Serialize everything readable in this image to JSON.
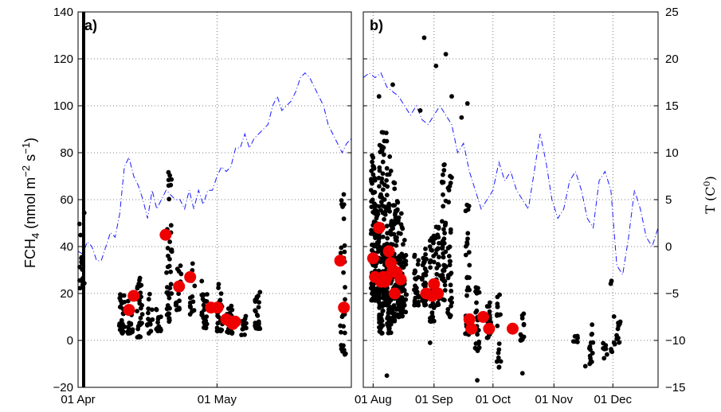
{
  "chart_data": [
    {
      "panel": "a)",
      "type": "scatter",
      "xlabel": "",
      "ylabel": "FCH4 (nmol m-2 s-1)",
      "xticks": [
        "01 Apr",
        "01 May"
      ],
      "xtick_days": [
        0,
        30
      ],
      "xlim_days": [
        0,
        59
      ],
      "ylim": [
        -20,
        140
      ],
      "yticks": [
        -20,
        0,
        20,
        40,
        60,
        80,
        100,
        120,
        140
      ],
      "grid": true,
      "vertical_marker_day": 1.2,
      "scatter_clusters": [
        {
          "day": 0.8,
          "n": 16,
          "ymin": 22,
          "ymax": 56
        },
        {
          "day": 9.5,
          "n": 30,
          "ymin": 3,
          "ymax": 20
        },
        {
          "day": 11.3,
          "n": 20,
          "ymin": 3,
          "ymax": 17
        },
        {
          "day": 13.3,
          "n": 28,
          "ymin": 1,
          "ymax": 27
        },
        {
          "day": 15.5,
          "n": 14,
          "ymin": 3,
          "ymax": 20
        },
        {
          "day": 17.4,
          "n": 16,
          "ymin": 4,
          "ymax": 19
        },
        {
          "day": 19.7,
          "n": 40,
          "ymin": 8,
          "ymax": 74
        },
        {
          "day": 21.7,
          "n": 18,
          "ymin": 13,
          "ymax": 32
        },
        {
          "day": 24.7,
          "n": 16,
          "ymin": 10,
          "ymax": 35
        },
        {
          "day": 27.3,
          "n": 26,
          "ymin": 5,
          "ymax": 26
        },
        {
          "day": 30.6,
          "n": 22,
          "ymin": 4,
          "ymax": 24
        },
        {
          "day": 32.7,
          "n": 30,
          "ymin": 3,
          "ymax": 15
        },
        {
          "day": 35.8,
          "n": 12,
          "ymin": 2,
          "ymax": 11
        },
        {
          "day": 38.7,
          "n": 26,
          "ymin": 5,
          "ymax": 21
        },
        {
          "day": 57.2,
          "n": 30,
          "ymin": -7,
          "ymax": 66
        }
      ],
      "red_means": [
        {
          "day": 11.0,
          "y": 13
        },
        {
          "day": 12.0,
          "y": 19
        },
        {
          "day": 18.9,
          "y": 45
        },
        {
          "day": 21.8,
          "y": 23
        },
        {
          "day": 24.2,
          "y": 27
        },
        {
          "day": 28.7,
          "y": 14
        },
        {
          "day": 30.1,
          "y": 14
        },
        {
          "day": 32.0,
          "y": 9
        },
        {
          "day": 32.9,
          "y": 8
        },
        {
          "day": 33.4,
          "y": 7
        },
        {
          "day": 33.9,
          "y": 8
        },
        {
          "day": 56.6,
          "y": 34
        },
        {
          "day": 57.4,
          "y": 14
        }
      ],
      "temperature_series": {
        "axis": "right",
        "ylim": [
          -15,
          25
        ],
        "days": [
          0,
          1,
          2,
          3,
          4,
          5,
          6,
          7,
          8,
          9,
          10,
          11,
          12,
          13,
          14,
          15,
          16,
          17,
          18,
          19,
          20,
          21,
          22,
          23,
          24,
          25,
          26,
          27,
          28,
          29,
          30,
          31,
          32,
          33,
          34,
          35,
          36,
          37,
          38,
          39,
          40,
          41,
          42,
          43,
          44,
          45,
          46,
          47,
          48,
          49,
          50,
          51,
          52,
          53,
          54,
          55,
          56,
          57,
          58,
          59
        ],
        "values": [
          -0.5,
          -0.8,
          0.5,
          0,
          -1.5,
          -1.5,
          0,
          1.5,
          1,
          3.5,
          8.5,
          9.5,
          7.5,
          6.5,
          5,
          3,
          6,
          4,
          5,
          6,
          5.5,
          5,
          5,
          4,
          6,
          4,
          6,
          4.5,
          6,
          6,
          7.5,
          8.5,
          8,
          8.5,
          10.5,
          10.5,
          12,
          10.5,
          11.5,
          12,
          12.5,
          13,
          15,
          16,
          14.5,
          15,
          15.5,
          16.5,
          18,
          18.5,
          18,
          17,
          16,
          15,
          13,
          12,
          11,
          10,
          11,
          11.5
        ]
      }
    },
    {
      "panel": "b)",
      "type": "scatter",
      "xlabel": "",
      "ylabel": "T (C0)",
      "xticks": [
        "01 Aug",
        "01 Sep",
        "01 Oct",
        "01 Nov",
        "01 Dec"
      ],
      "xtick_days": [
        5,
        36,
        66,
        97,
        127
      ],
      "xlim_days": [
        0,
        150
      ],
      "ylim": [
        -20,
        140
      ],
      "y2lim": [
        -15,
        25
      ],
      "y2ticks": [
        -15,
        -10,
        -5,
        0,
        5,
        10,
        15,
        20,
        25
      ],
      "grid": true,
      "scatter_clusters": [
        {
          "day": 5,
          "n": 70,
          "ymin": 17,
          "ymax": 80
        },
        {
          "day": 7,
          "n": 70,
          "ymin": 17,
          "ymax": 60
        },
        {
          "day": 9,
          "n": 70,
          "ymin": 3,
          "ymax": 92
        },
        {
          "day": 11,
          "n": 70,
          "ymin": 15,
          "ymax": 90
        },
        {
          "day": 13,
          "n": 60,
          "ymin": 3,
          "ymax": 80
        },
        {
          "day": 15,
          "n": 60,
          "ymin": 8,
          "ymax": 70
        },
        {
          "day": 17,
          "n": 50,
          "ymin": 10,
          "ymax": 60
        },
        {
          "day": 19,
          "n": 40,
          "ymin": 10,
          "ymax": 55
        },
        {
          "day": 21,
          "n": 30,
          "ymin": 12,
          "ymax": 45
        },
        {
          "day": 27,
          "n": 30,
          "ymin": 15,
          "ymax": 40
        },
        {
          "day": 31,
          "n": 40,
          "ymin": 15,
          "ymax": 40
        },
        {
          "day": 35,
          "n": 40,
          "ymin": 8,
          "ymax": 45
        },
        {
          "day": 38,
          "n": 30,
          "ymin": 15,
          "ymax": 50
        },
        {
          "day": 41,
          "n": 40,
          "ymin": 17,
          "ymax": 75
        },
        {
          "day": 44,
          "n": 30,
          "ymin": 10,
          "ymax": 72
        },
        {
          "day": 53,
          "n": 30,
          "ymin": 2,
          "ymax": 60
        },
        {
          "day": 58,
          "n": 24,
          "ymin": -5,
          "ymax": 25
        },
        {
          "day": 64,
          "n": 22,
          "ymin": 1,
          "ymax": 18
        },
        {
          "day": 69,
          "n": 18,
          "ymin": -12,
          "ymax": 20
        },
        {
          "day": 81,
          "n": 14,
          "ymin": 0,
          "ymax": 14
        },
        {
          "day": 108,
          "n": 6,
          "ymin": -1,
          "ymax": 2
        },
        {
          "day": 116,
          "n": 14,
          "ymin": -10,
          "ymax": 8
        },
        {
          "day": 123,
          "n": 6,
          "ymin": -8,
          "ymax": 3
        },
        {
          "day": 127,
          "n": 8,
          "ymin": -5,
          "ymax": 32
        },
        {
          "day": 130,
          "n": 10,
          "ymin": -3,
          "ymax": 10
        }
      ],
      "extra_points": [
        {
          "day": 31,
          "y": 129
        },
        {
          "day": 37,
          "y": 117
        },
        {
          "day": 42,
          "y": 122
        },
        {
          "day": 45,
          "y": 104
        },
        {
          "day": 50,
          "y": 95
        },
        {
          "day": 15,
          "y": 109
        },
        {
          "day": 53,
          "y": 101
        },
        {
          "day": 8,
          "y": 104
        },
        {
          "day": 12,
          "y": -15
        },
        {
          "day": 34,
          "y": -1
        },
        {
          "day": 58,
          "y": -17
        },
        {
          "day": 68,
          "y": -9
        },
        {
          "day": 81,
          "y": -14
        },
        {
          "day": 113,
          "y": -11
        },
        {
          "day": 124,
          "y": -6
        },
        {
          "day": 29,
          "y": 98
        }
      ],
      "red_means": [
        {
          "day": 5,
          "y": 35
        },
        {
          "day": 6,
          "y": 27
        },
        {
          "day": 8,
          "y": 48
        },
        {
          "day": 9,
          "y": 25
        },
        {
          "day": 10,
          "y": 27
        },
        {
          "day": 11,
          "y": 25
        },
        {
          "day": 12,
          "y": 27
        },
        {
          "day": 13,
          "y": 38
        },
        {
          "day": 14,
          "y": 33
        },
        {
          "day": 15,
          "y": 30
        },
        {
          "day": 16,
          "y": 20
        },
        {
          "day": 17,
          "y": 29
        },
        {
          "day": 19,
          "y": 26
        },
        {
          "day": 32,
          "y": 20
        },
        {
          "day": 35,
          "y": 19
        },
        {
          "day": 36,
          "y": 24
        },
        {
          "day": 38,
          "y": 20
        },
        {
          "day": 54,
          "y": 9
        },
        {
          "day": 55,
          "y": 5
        },
        {
          "day": 61,
          "y": 10
        },
        {
          "day": 64,
          "y": 5
        },
        {
          "day": 76,
          "y": 5
        }
      ],
      "temperature_series": {
        "axis": "right",
        "ylim": [
          -15,
          25
        ],
        "days": [
          0,
          3,
          6,
          9,
          12,
          15,
          18,
          21,
          24,
          27,
          30,
          33,
          36,
          39,
          42,
          45,
          48,
          51,
          54,
          57,
          60,
          63,
          66,
          69,
          72,
          75,
          78,
          81,
          84,
          87,
          90,
          93,
          96,
          99,
          102,
          105,
          108,
          111,
          114,
          117,
          120,
          123,
          126,
          129,
          132,
          135,
          138,
          141,
          144,
          147,
          150
        ],
        "values": [
          18,
          18.5,
          18,
          18.5,
          17,
          16.5,
          16,
          15,
          14,
          15,
          13.5,
          13,
          14,
          15,
          14,
          13,
          10,
          11,
          8,
          6,
          4,
          5,
          6,
          9,
          7,
          8,
          6,
          5,
          4,
          8,
          12,
          9,
          5,
          3,
          4,
          7,
          8,
          6,
          3,
          2,
          7,
          8,
          6,
          -2,
          -3,
          1,
          6,
          4,
          1,
          0,
          2
        ]
      }
    }
  ]
}
